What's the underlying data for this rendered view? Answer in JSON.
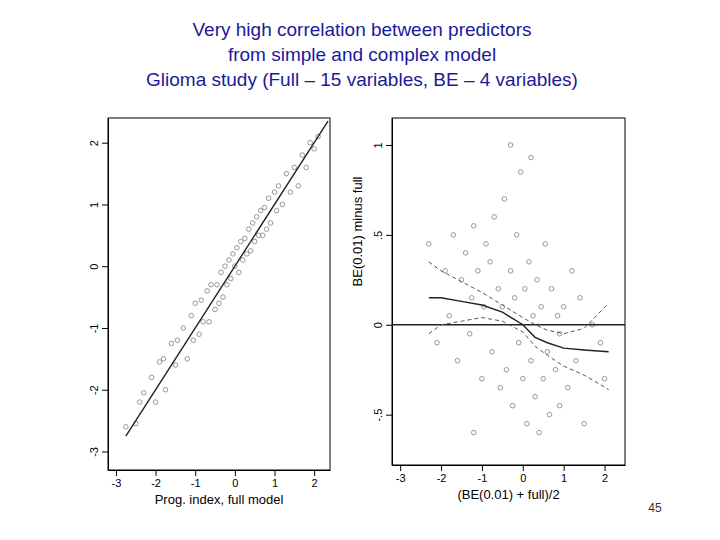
{
  "title": [
    "Very high correlation between predictors",
    "from simple and complex model",
    "Glioma study (Full – 15 variables, BE – 4 variables)"
  ],
  "page_number": 45,
  "chart_data": [
    {
      "type": "scatter",
      "x_label": "Prog. index, full model",
      "xlim": [
        -3.2,
        2.4
      ],
      "ylim": [
        -3.3,
        2.4
      ],
      "xticks": [
        -3,
        -2,
        -1,
        0,
        1,
        2
      ],
      "yticks": [
        -3,
        -2,
        -1,
        0,
        1,
        2
      ],
      "series": [
        {
          "type": "scatter",
          "color": "#8c8c8c",
          "marker": "circle",
          "x": [
            -2.75,
            -2.5,
            -2.4,
            -2.3,
            -2.1,
            -2.0,
            -1.9,
            -1.8,
            -1.75,
            -1.6,
            -1.5,
            -1.45,
            -1.3,
            -1.2,
            -1.1,
            -1.05,
            -1.0,
            -0.9,
            -0.85,
            -0.8,
            -0.7,
            -0.65,
            -0.6,
            -0.5,
            -0.45,
            -0.4,
            -0.35,
            -0.3,
            -0.25,
            -0.2,
            -0.15,
            -0.1,
            -0.05,
            0,
            0.05,
            0.1,
            0.15,
            0.2,
            0.25,
            0.3,
            0.35,
            0.4,
            0.45,
            0.5,
            0.55,
            0.6,
            0.65,
            0.7,
            0.75,
            0.8,
            0.85,
            0.9,
            1.0,
            1.05,
            1.1,
            1.2,
            1.3,
            1.4,
            1.5,
            1.6,
            1.7,
            1.8,
            1.9,
            2.0,
            2.1
          ],
          "values": [
            -2.6,
            -2.55,
            -2.2,
            -2.05,
            -1.8,
            -2.2,
            -1.55,
            -1.5,
            -2.0,
            -1.25,
            -1.6,
            -1.2,
            -1.0,
            -1.5,
            -0.8,
            -1.2,
            -0.6,
            -1.1,
            -0.55,
            -0.9,
            -0.4,
            -0.9,
            -0.3,
            -0.7,
            -0.3,
            -0.6,
            -0.1,
            -0.5,
            0.0,
            -0.3,
            0.1,
            -0.2,
            0.2,
            0.0,
            0.3,
            -0.1,
            0.4,
            0.1,
            0.45,
            0.2,
            0.6,
            0.25,
            0.7,
            0.4,
            0.8,
            0.5,
            0.9,
            0.5,
            0.95,
            0.6,
            1.1,
            0.7,
            1.2,
            0.9,
            1.3,
            1.0,
            1.5,
            1.2,
            1.6,
            1.3,
            1.8,
            1.6,
            2.0,
            1.9,
            2.1
          ]
        },
        {
          "type": "line",
          "color": "#222222",
          "line_style": "solid",
          "x": [
            -2.75,
            2.35
          ],
          "values": [
            -2.75,
            2.35
          ]
        }
      ]
    },
    {
      "type": "scatter",
      "x_label": "(BE(0.01) + full)/2",
      "y_label": "BE(0.01) minus full",
      "xlim": [
        -3.2,
        2.5
      ],
      "ylim": [
        -0.78,
        1.15
      ],
      "xticks": [
        -3,
        -2,
        -1,
        0,
        1,
        2
      ],
      "yticks": [
        {
          "value": -0.5,
          "label": "-.5"
        },
        0,
        {
          "value": 0.5,
          "label": ".5"
        },
        1
      ],
      "series": [
        {
          "type": "scatter",
          "color": "#8c8c8c",
          "marker": "circle",
          "x": [
            -2.3,
            -2.1,
            -1.9,
            -1.8,
            -1.7,
            -1.6,
            -1.5,
            -1.4,
            -1.3,
            -1.25,
            -1.2,
            -1.1,
            -1.0,
            -0.95,
            -0.9,
            -0.8,
            -0.75,
            -0.7,
            -0.6,
            -0.55,
            -0.5,
            -0.45,
            -0.4,
            -0.3,
            -0.25,
            -0.2,
            -0.15,
            -0.1,
            -0.05,
            0,
            0.05,
            0.1,
            0.15,
            0.2,
            0.25,
            0.3,
            0.35,
            0.4,
            0.45,
            0.5,
            0.55,
            0.6,
            0.65,
            0.7,
            0.8,
            0.85,
            0.9,
            1.0,
            1.1,
            1.2,
            1.3,
            1.4,
            1.5,
            1.7,
            1.9,
            2.0,
            -0.3,
            0.2,
            -1.2,
            0.9
          ],
          "values": [
            0.45,
            -0.1,
            0.3,
            0.05,
            0.5,
            -0.2,
            0.25,
            0.4,
            -0.05,
            0.15,
            0.55,
            0.3,
            -0.3,
            0.1,
            0.45,
            0.35,
            -0.15,
            0.6,
            0.2,
            -0.35,
            0.1,
            0.7,
            -0.25,
            0.3,
            -0.45,
            0.15,
            0.5,
            -0.1,
            0.85,
            -0.3,
            0.2,
            -0.55,
            0.35,
            -0.2,
            0.05,
            -0.4,
            0.25,
            -0.6,
            0.1,
            -0.3,
            0.45,
            -0.15,
            -0.5,
            0.2,
            -0.25,
            0.05,
            -0.45,
            0.1,
            -0.35,
            0.3,
            -0.2,
            0.15,
            -0.55,
            0.0,
            -0.1,
            -0.3,
            1.0,
            0.93,
            -0.6,
            -0.05
          ]
        },
        {
          "type": "line",
          "color": "#222222",
          "line_style": "solid",
          "x": [
            -3.2,
            2.5
          ],
          "values": [
            0,
            0
          ]
        },
        {
          "type": "line",
          "color": "#222222",
          "line_style": "solid",
          "x": [
            -2.3,
            -2,
            -1.5,
            -1,
            -0.5,
            0,
            0.3,
            0.6,
            1,
            1.5,
            2.1
          ],
          "values": [
            0.15,
            0.15,
            0.13,
            0.11,
            0.07,
            0.0,
            -0.07,
            -0.1,
            -0.13,
            -0.14,
            -0.15
          ]
        },
        {
          "type": "line",
          "color": "#555555",
          "line_style": "dashed",
          "x": [
            -2.3,
            -2,
            -1.5,
            -1,
            -0.5,
            0,
            0.3,
            0.6,
            1,
            1.5,
            2.1
          ],
          "values": [
            0.35,
            0.3,
            0.24,
            0.18,
            0.11,
            0.04,
            0.0,
            -0.03,
            -0.05,
            -0.02,
            0.12
          ]
        },
        {
          "type": "line",
          "color": "#555555",
          "line_style": "dashed",
          "x": [
            -2.3,
            -2,
            -1.5,
            -1,
            -0.5,
            0,
            0.3,
            0.6,
            1,
            1.5,
            2.1
          ],
          "values": [
            -0.05,
            0.0,
            0.02,
            0.04,
            0.02,
            -0.04,
            -0.12,
            -0.17,
            -0.23,
            -0.28,
            -0.36
          ]
        }
      ]
    }
  ]
}
